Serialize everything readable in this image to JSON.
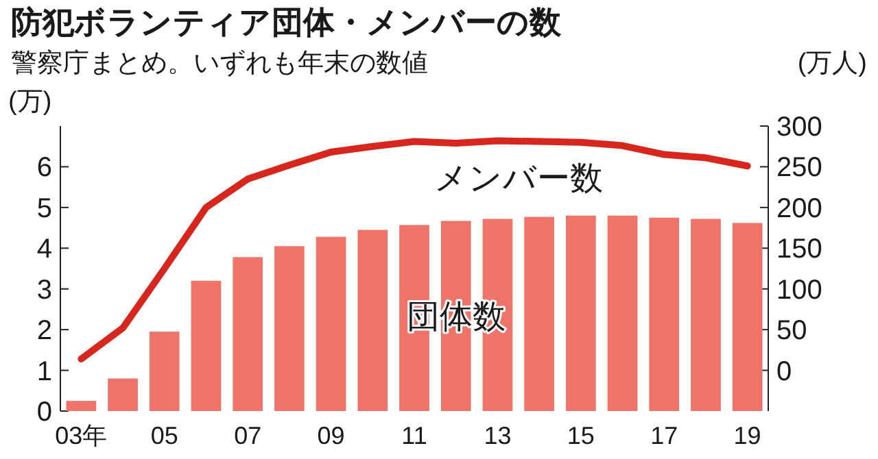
{
  "chart_data": {
    "type": "bar",
    "title": "防犯ボランティア団体・メンバーの数",
    "subtitle": "警察庁まとめ。いずれも年末の数値",
    "ylabel": "(万)",
    "y2label": "(万人)",
    "categories": [
      "03年",
      null,
      "05",
      null,
      "07",
      null,
      "09",
      null,
      "11",
      null,
      "13",
      null,
      "15",
      null,
      "17",
      null,
      "19"
    ],
    "ylim": [
      0,
      7
    ],
    "yticks": [
      0,
      1,
      2,
      3,
      4,
      5,
      6
    ],
    "y2lim": [
      -50,
      300
    ],
    "y2ticks": [
      0,
      50,
      100,
      150,
      200,
      250,
      300
    ],
    "grid": false,
    "series": [
      {
        "name": "団体数",
        "color": "#ee7469",
        "values": [
          0.25,
          0.8,
          1.95,
          3.2,
          3.78,
          4.05,
          4.28,
          4.45,
          4.57,
          4.67,
          4.72,
          4.77,
          4.8,
          4.8,
          4.75,
          4.72,
          4.62
        ]
      },
      {
        "name": "メンバー数",
        "type": "line",
        "axis": "y2",
        "color": "#d7261e",
        "values": [
          14,
          52,
          125,
          200,
          235,
          252,
          268,
          275,
          281,
          279,
          282,
          281,
          280,
          276,
          265,
          261,
          251
        ]
      }
    ]
  }
}
